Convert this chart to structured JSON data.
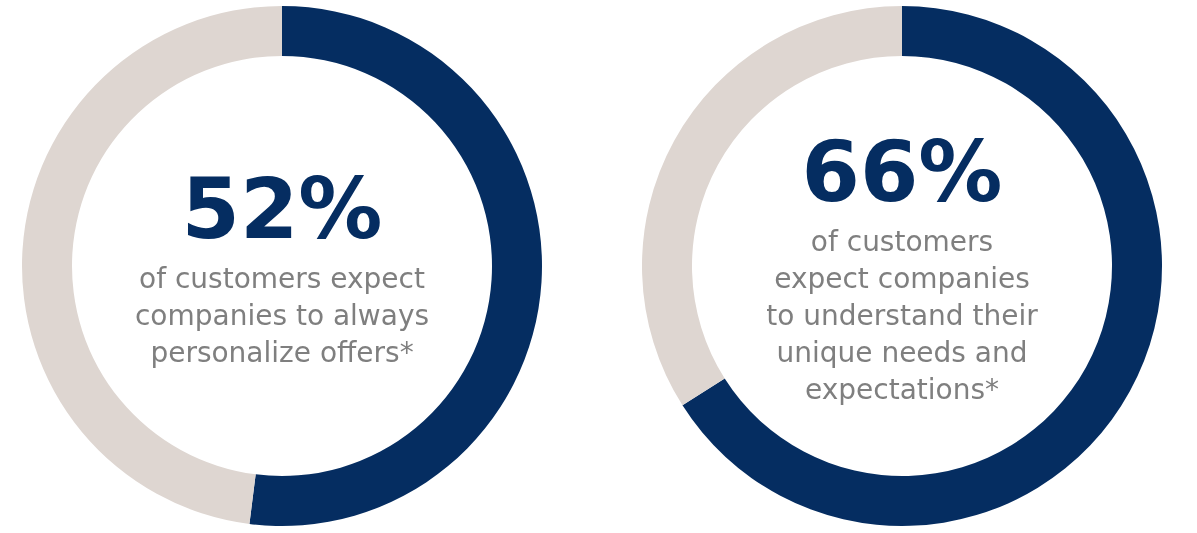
{
  "chart_data": [
    {
      "type": "donut",
      "categories": [
        null,
        null
      ],
      "values": [
        52,
        48
      ],
      "colors": [
        "#052d61",
        "#ded6d1"
      ],
      "value_labels": [
        "52%",
        null
      ],
      "annotations": [
        "of customers expect\ncompanies to always\npersonalize offers*"
      ],
      "legend": false
    },
    {
      "type": "donut",
      "categories": [
        null,
        null
      ],
      "values": [
        66,
        34
      ],
      "colors": [
        "#052d61",
        "#ded6d1"
      ],
      "value_labels": [
        "66%",
        null
      ],
      "annotations": [
        "of customers\nexpect companies\nto understand their\nunique needs and\nexpectations*"
      ],
      "legend": false
    }
  ]
}
